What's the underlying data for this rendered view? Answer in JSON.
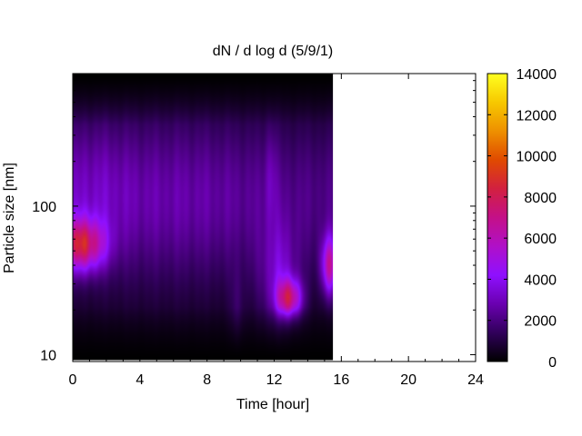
{
  "chart_data": {
    "type": "heatmap",
    "title": "dN / d log d (5/9/1)",
    "xlabel": "Time [hour]",
    "ylabel": "Particle size [nm]",
    "xlim": [
      0,
      24
    ],
    "ylim": [
      9,
      780
    ],
    "yscale": "log",
    "x_ticks": [
      0,
      4,
      8,
      12,
      16,
      20,
      24
    ],
    "y_ticks": [
      10,
      100
    ],
    "data_x_range": [
      0,
      15.5
    ],
    "data_y_range": [
      9.2,
      780
    ],
    "colorbar": {
      "range": [
        0,
        14000
      ],
      "ticks": [
        0,
        2000,
        4000,
        6000,
        8000,
        10000,
        12000,
        14000
      ],
      "colormap": [
        "#000000",
        "#30005a",
        "#6a00b0",
        "#8f10ff",
        "#b010c8",
        "#c41088",
        "#d22040",
        "#e04a00",
        "#ee9000",
        "#f7c800",
        "#ffff20"
      ]
    },
    "features": [
      {
        "x": 0.7,
        "y": 55,
        "value": 9500
      },
      {
        "x": 12.8,
        "y": 25,
        "value": 9000
      },
      {
        "x": 15.3,
        "y": 40,
        "value": 8000
      },
      {
        "x": 6.0,
        "y": 150,
        "value": 2800
      }
    ]
  }
}
